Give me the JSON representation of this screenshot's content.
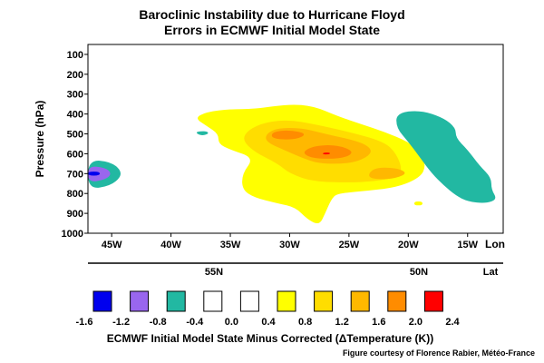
{
  "chart_data": {
    "type": "heatmap",
    "title": "Baroclinic Instability due to Hurricane Floyd",
    "subtitle": "Errors in ECMWF Initial Model State",
    "ylabel": "Pressure (hPa)",
    "xlabel": "ECMWF Initial Model State Minus Corrected (ΔTemperature (K))",
    "y_ticks": [
      "100",
      "200",
      "300",
      "400",
      "500",
      "600",
      "700",
      "800",
      "900",
      "1000"
    ],
    "ylim": [
      1000,
      50
    ],
    "y_scale": "linear, inverted",
    "x_ticks": [
      "45W",
      "40W",
      "35W",
      "30W",
      "25W",
      "20W",
      "15W"
    ],
    "x_tick_values": [
      -45,
      -40,
      -35,
      -30,
      -25,
      -20,
      -15
    ],
    "xlim": [
      -47,
      -12
    ],
    "lon_label": "Lon",
    "lat_ticks": [
      "55N",
      "50N"
    ],
    "lat_label": "Lat",
    "color_bins": [
      {
        "lower": -1.6,
        "upper": -1.2,
        "color": "#0000ee"
      },
      {
        "lower": -1.2,
        "upper": -0.8,
        "color": "#9966ee"
      },
      {
        "lower": -0.8,
        "upper": -0.4,
        "color": "#22b8a2"
      },
      {
        "lower": -0.4,
        "upper": 0.0,
        "color": "#ffffff"
      },
      {
        "lower": 0.0,
        "upper": 0.4,
        "color": "#ffffff"
      },
      {
        "lower": 0.4,
        "upper": 0.8,
        "color": "#ffff00"
      },
      {
        "lower": 0.8,
        "upper": 1.2,
        "color": "#ffdd00"
      },
      {
        "lower": 1.2,
        "upper": 1.6,
        "color": "#ffb800"
      },
      {
        "lower": 1.6,
        "upper": 2.0,
        "color": "#ff8c00"
      },
      {
        "lower": 2.0,
        "upper": 2.4,
        "color": "#ff0000"
      }
    ],
    "colorbar_labels": [
      "-1.6",
      "-1.2",
      "-0.8",
      "-0.4",
      "0.0",
      "0.4",
      "0.8",
      "1.2",
      "1.6",
      "2.0",
      "2.4"
    ],
    "regions": [
      {
        "bin": 5,
        "points": [
          [
            -33,
            375
          ],
          [
            -30,
            350
          ],
          [
            -28,
            360
          ],
          [
            -26,
            410
          ],
          [
            -24,
            450
          ],
          [
            -22,
            490
          ],
          [
            -20,
            540
          ],
          [
            -19,
            590
          ],
          [
            -18.5,
            660
          ],
          [
            -19,
            720
          ],
          [
            -21,
            770
          ],
          [
            -24,
            790
          ],
          [
            -26,
            800
          ],
          [
            -26.5,
            830
          ],
          [
            -27,
            900
          ],
          [
            -27.5,
            960
          ],
          [
            -28.5,
            930
          ],
          [
            -29.5,
            870
          ],
          [
            -31,
            850
          ],
          [
            -33,
            820
          ],
          [
            -34,
            780
          ],
          [
            -34,
            700
          ],
          [
            -33,
            620
          ],
          [
            -35,
            580
          ],
          [
            -36,
            550
          ],
          [
            -36,
            500
          ],
          [
            -37,
            460
          ],
          [
            -38,
            420
          ],
          [
            -37,
            390
          ],
          [
            -35,
            375
          ]
        ]
      },
      {
        "bin": 6,
        "points": [
          [
            -32,
            440
          ],
          [
            -30,
            430
          ],
          [
            -28,
            450
          ],
          [
            -25,
            490
          ],
          [
            -22,
            540
          ],
          [
            -21,
            600
          ],
          [
            -20.5,
            680
          ],
          [
            -21,
            720
          ],
          [
            -23,
            740
          ],
          [
            -25,
            745
          ],
          [
            -28,
            740
          ],
          [
            -30,
            700
          ],
          [
            -31,
            650
          ],
          [
            -33,
            590
          ],
          [
            -34,
            530
          ],
          [
            -33.5,
            480
          ]
        ]
      },
      {
        "bin": 7,
        "points": [
          [
            -31,
            470
          ],
          [
            -29,
            470
          ],
          [
            -27,
            500
          ],
          [
            -24,
            540
          ],
          [
            -23,
            580
          ],
          [
            -23.5,
            620
          ],
          [
            -25,
            650
          ],
          [
            -27.5,
            650
          ],
          [
            -29,
            620
          ],
          [
            -30.5,
            580
          ],
          [
            -32,
            540
          ],
          [
            -32,
            500
          ]
        ]
      },
      {
        "bin": 7,
        "points": [
          [
            -23,
            670
          ],
          [
            -21,
            670
          ],
          [
            -20,
            700
          ],
          [
            -21.5,
            730
          ],
          [
            -23.5,
            725
          ]
        ]
      },
      {
        "bin": 8,
        "points": [
          [
            -31.5,
            490
          ],
          [
            -30,
            480
          ],
          [
            -28.5,
            500
          ],
          [
            -29.5,
            530
          ],
          [
            -31.5,
            525
          ]
        ]
      },
      {
        "bin": 8,
        "points": [
          [
            -28,
            560
          ],
          [
            -26,
            555
          ],
          [
            -24.5,
            590
          ],
          [
            -25.5,
            625
          ],
          [
            -28,
            625
          ],
          [
            -29,
            595
          ]
        ]
      },
      {
        "bin": 9,
        "points": [
          [
            -27.2,
            595
          ],
          [
            -26.6,
            593
          ],
          [
            -26.6,
            603
          ],
          [
            -27.2,
            603
          ]
        ]
      },
      {
        "bin": 5,
        "points": [
          [
            -19.5,
            840
          ],
          [
            -18.8,
            840
          ],
          [
            -18.8,
            860
          ],
          [
            -19.5,
            860
          ]
        ]
      },
      {
        "bin": 2,
        "points": [
          [
            -21,
            395
          ],
          [
            -19,
            380
          ],
          [
            -17,
            420
          ],
          [
            -16,
            470
          ],
          [
            -16,
            520
          ],
          [
            -15,
            580
          ],
          [
            -14,
            660
          ],
          [
            -13,
            720
          ],
          [
            -13,
            780
          ],
          [
            -12.5,
            830
          ],
          [
            -13.5,
            850
          ],
          [
            -15,
            840
          ],
          [
            -16,
            810
          ],
          [
            -17,
            760
          ],
          [
            -18,
            700
          ],
          [
            -19,
            620
          ],
          [
            -20,
            540
          ],
          [
            -21,
            470
          ]
        ]
      },
      {
        "bin": 2,
        "points": [
          [
            -38,
            490
          ],
          [
            -37,
            485
          ],
          [
            -36.8,
            500
          ],
          [
            -37.5,
            510
          ]
        ]
      },
      {
        "bin": 2,
        "points": [
          [
            -47,
            630
          ],
          [
            -45,
            640
          ],
          [
            -44,
            700
          ],
          [
            -45,
            760
          ],
          [
            -47,
            780
          ]
        ]
      },
      {
        "bin": 1,
        "points": [
          [
            -47,
            660
          ],
          [
            -45.5,
            670
          ],
          [
            -45,
            700
          ],
          [
            -45.5,
            730
          ],
          [
            -47,
            745
          ]
        ]
      },
      {
        "bin": 0,
        "points": [
          [
            -47,
            690
          ],
          [
            -46,
            690
          ],
          [
            -46,
            710
          ],
          [
            -47,
            710
          ]
        ]
      }
    ],
    "credit": "Figure courtesy of Florence Rabier, Météo-France"
  }
}
